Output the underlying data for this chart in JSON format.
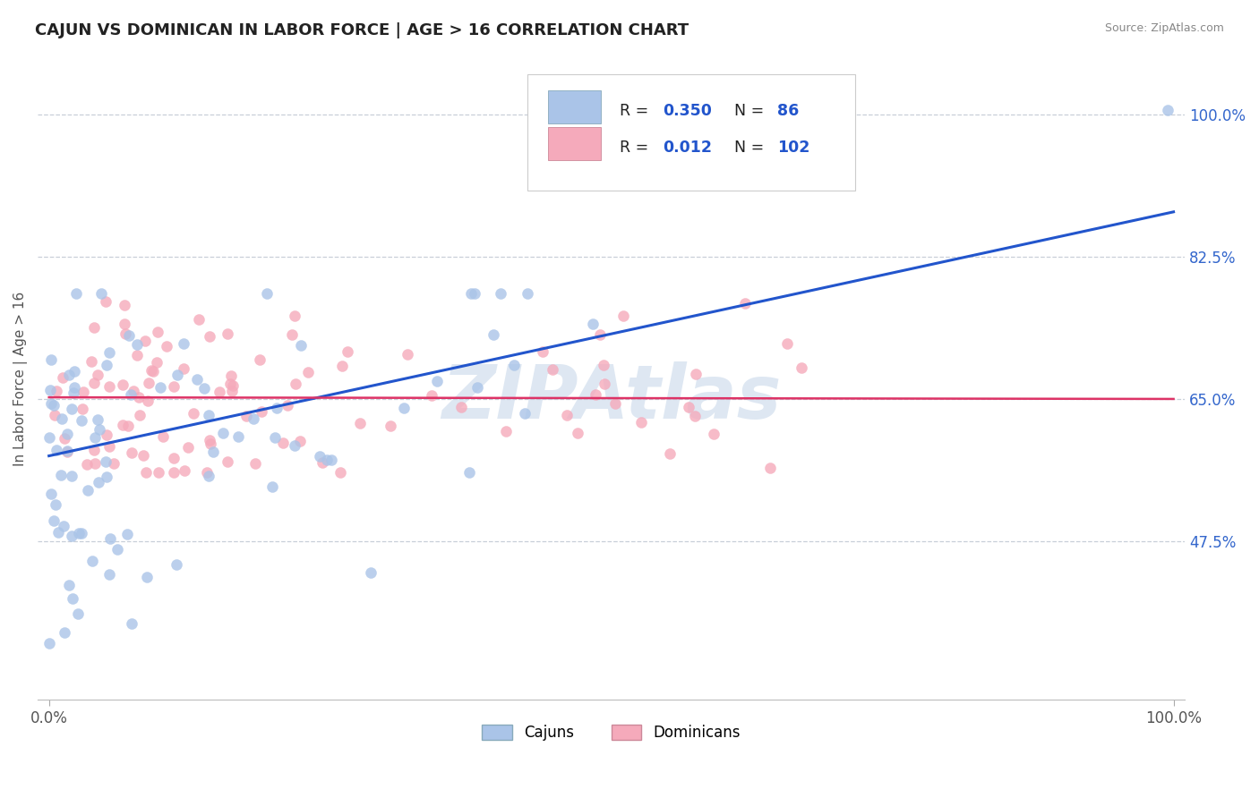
{
  "title": "CAJUN VS DOMINICAN IN LABOR FORCE | AGE > 16 CORRELATION CHART",
  "source": "Source: ZipAtlas.com",
  "ylabel": "In Labor Force | Age > 16",
  "xlim": [
    -1,
    101
  ],
  "ylim": [
    28,
    107
  ],
  "yticks": [
    47.5,
    65.0,
    82.5,
    100.0
  ],
  "xticks": [
    0,
    100
  ],
  "xtick_labels": [
    "0.0%",
    "100.0%"
  ],
  "ytick_labels": [
    "47.5%",
    "65.0%",
    "82.5%",
    "100.0%"
  ],
  "cajun_color": "#aac4e8",
  "dominican_color": "#f5aabb",
  "cajun_line_color": "#2255cc",
  "dominican_line_color": "#dd3366",
  "cajun_R": 0.35,
  "cajun_N": 86,
  "dominican_R": 0.012,
  "dominican_N": 102,
  "watermark": "ZIPAtlas",
  "watermark_color": "#c8d8ea",
  "legend_label_cajun": "Cajuns",
  "legend_label_dominican": "Dominicans",
  "background_color": "#ffffff",
  "grid_color": "#c8cfd8",
  "title_color": "#222222",
  "axis_color": "#555555",
  "tick_color": "#3366cc",
  "stat_text_color": "#222222",
  "stat_value_color": "#2255cc",
  "cajun_trend_start": 58.0,
  "cajun_trend_end": 88.0,
  "dominican_trend_y": 65.0
}
